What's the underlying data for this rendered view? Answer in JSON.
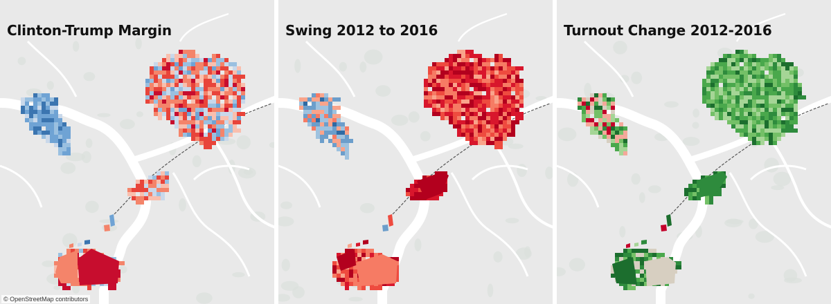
{
  "panels": [
    {
      "id": "margin",
      "title": "Clinton-Trump Margin",
      "palette": [
        "#c70d2e",
        "#e8443a",
        "#f4846a",
        "#f9bfae",
        "#c9d8ea",
        "#9ac0e0",
        "#6fa3d4",
        "#3b75b0"
      ]
    },
    {
      "id": "swing",
      "title": "Swing 2012 to 2016",
      "palette": [
        "#b3001e",
        "#d8162c",
        "#ee4b3f",
        "#f67b64",
        "#f9a48b",
        "#9ec2df",
        "#6c9ecb",
        "#2f6aa3"
      ]
    },
    {
      "id": "turnout",
      "title": "Turnout Change 2012-2016",
      "palette": [
        "#1c6e2e",
        "#2e8b3d",
        "#4aa84c",
        "#74c067",
        "#a5d596",
        "#d7cfc1",
        "#f4a89a",
        "#c3002a"
      ]
    }
  ],
  "attribution": "© OpenStreetMap contributors",
  "colors": {
    "land": "#e9e9e9",
    "water": "#ffffff",
    "parks": "#dadfdb",
    "rail": "#555555"
  }
}
